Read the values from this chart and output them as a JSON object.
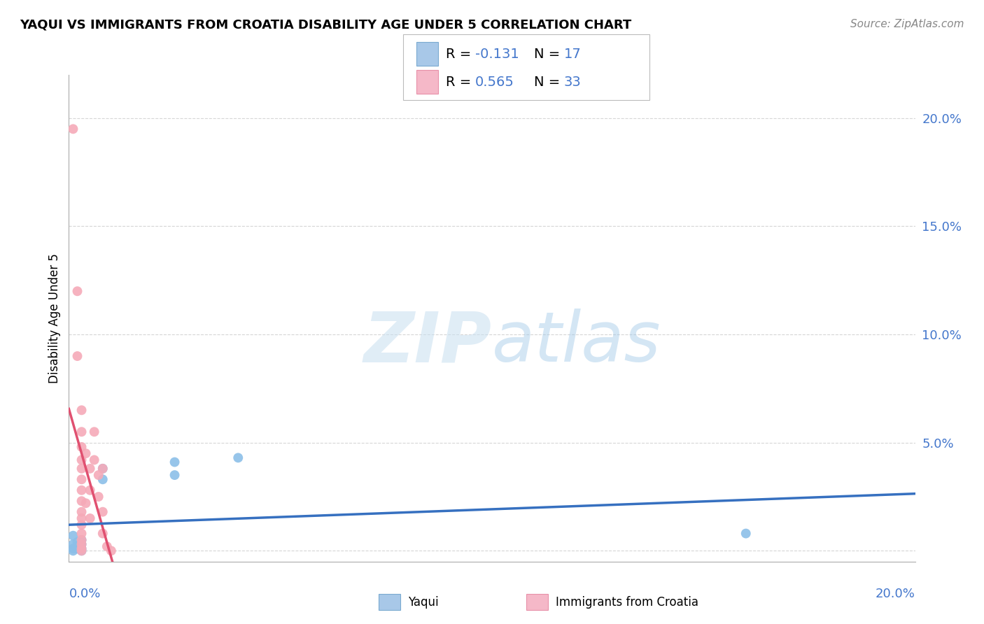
{
  "title": "YAQUI VS IMMIGRANTS FROM CROATIA DISABILITY AGE UNDER 5 CORRELATION CHART",
  "source": "Source: ZipAtlas.com",
  "ylabel": "Disability Age Under 5",
  "xlim": [
    0.0,
    0.2
  ],
  "ylim": [
    -0.005,
    0.22
  ],
  "ytick_values": [
    0.0,
    0.05,
    0.1,
    0.15,
    0.2
  ],
  "yaqui_scatter": [
    [
      0.001,
      0.007
    ],
    [
      0.001,
      0.003
    ],
    [
      0.001,
      0.001
    ],
    [
      0.001,
      0.0
    ],
    [
      0.002,
      0.004
    ],
    [
      0.002,
      0.002
    ],
    [
      0.002,
      0.001
    ],
    [
      0.003,
      0.005
    ],
    [
      0.003,
      0.003
    ],
    [
      0.003,
      0.001
    ],
    [
      0.003,
      0.0
    ],
    [
      0.008,
      0.038
    ],
    [
      0.008,
      0.033
    ],
    [
      0.025,
      0.041
    ],
    [
      0.025,
      0.035
    ],
    [
      0.04,
      0.043
    ],
    [
      0.16,
      0.008
    ]
  ],
  "croatia_scatter": [
    [
      0.001,
      0.195
    ],
    [
      0.002,
      0.12
    ],
    [
      0.002,
      0.09
    ],
    [
      0.003,
      0.065
    ],
    [
      0.003,
      0.055
    ],
    [
      0.003,
      0.048
    ],
    [
      0.003,
      0.042
    ],
    [
      0.003,
      0.038
    ],
    [
      0.003,
      0.033
    ],
    [
      0.003,
      0.028
    ],
    [
      0.003,
      0.023
    ],
    [
      0.003,
      0.018
    ],
    [
      0.003,
      0.015
    ],
    [
      0.003,
      0.012
    ],
    [
      0.003,
      0.008
    ],
    [
      0.003,
      0.005
    ],
    [
      0.003,
      0.003
    ],
    [
      0.003,
      0.001
    ],
    [
      0.003,
      0.0
    ],
    [
      0.004,
      0.045
    ],
    [
      0.004,
      0.022
    ],
    [
      0.005,
      0.038
    ],
    [
      0.005,
      0.028
    ],
    [
      0.005,
      0.015
    ],
    [
      0.006,
      0.055
    ],
    [
      0.006,
      0.042
    ],
    [
      0.007,
      0.035
    ],
    [
      0.007,
      0.025
    ],
    [
      0.008,
      0.038
    ],
    [
      0.008,
      0.018
    ],
    [
      0.008,
      0.008
    ],
    [
      0.009,
      0.002
    ],
    [
      0.01,
      0.0
    ]
  ],
  "yaqui_color": "#8cbfe8",
  "croatia_color": "#f5aab8",
  "yaqui_trendline_color": "#3670c0",
  "croatia_trendline_color": "#e05070",
  "croatia_dashed_color": "#e8a0b0",
  "watermark_zip": "ZIP",
  "watermark_atlas": "atlas",
  "background_color": "#ffffff",
  "grid_color": "#cccccc",
  "marker_size": 100,
  "r_yaqui": -0.131,
  "n_yaqui": 17,
  "r_croatia": 0.565,
  "n_croatia": 33,
  "legend_blue_color": "#a8c8e8",
  "legend_pink_color": "#f5b8c8",
  "legend_blue_edge": "#7aaad0",
  "legend_pink_edge": "#e890a8",
  "text_blue": "#4477cc",
  "title_fontsize": 13,
  "source_fontsize": 11,
  "tick_fontsize": 13,
  "legend_fontsize": 14
}
